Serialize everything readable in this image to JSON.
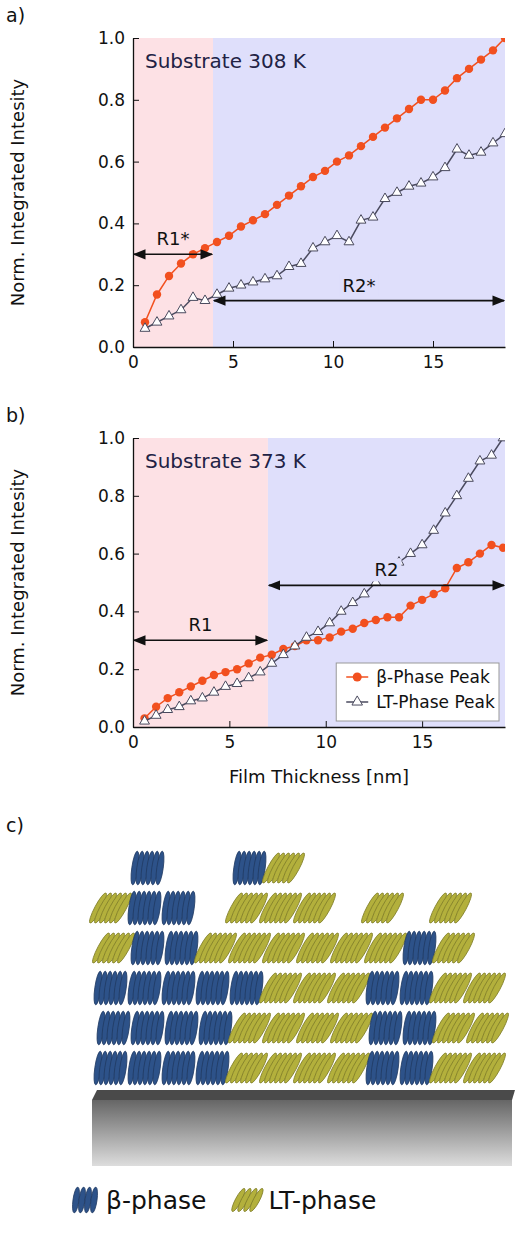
{
  "chart_data": [
    {
      "type": "line",
      "panel_label": "a)",
      "title": "Substrate 308 K",
      "y_label": "Norm. Integrated Intesity",
      "x": [
        0.6,
        1.2,
        1.8,
        2.4,
        3.0,
        3.6,
        4.2,
        4.8,
        5.4,
        6.0,
        6.6,
        7.2,
        7.8,
        8.4,
        9.0,
        9.6,
        10.2,
        10.8,
        11.4,
        12.0,
        12.6,
        13.2,
        13.8,
        14.4,
        15.0,
        15.6,
        16.2,
        16.8,
        17.4,
        18.0,
        18.6
      ],
      "xlim": [
        0,
        18.6
      ],
      "xticks": [
        0,
        5,
        10,
        15
      ],
      "ylim": [
        0,
        1
      ],
      "yticks": [
        {
          "value": 0,
          "label": "0.0"
        },
        {
          "value": 0.2,
          "label": "0.2"
        },
        {
          "value": 0.4,
          "label": "0.4"
        },
        {
          "value": 0.6,
          "label": "0.6"
        },
        {
          "value": 0.8,
          "label": "0.8"
        },
        {
          "value": 1,
          "label": "1.0"
        }
      ],
      "series": [
        {
          "color": "#f2501f",
          "marker": "circle",
          "values": [
            0.08,
            0.17,
            0.23,
            0.27,
            0.3,
            0.32,
            0.34,
            0.36,
            0.39,
            0.41,
            0.43,
            0.46,
            0.49,
            0.52,
            0.55,
            0.57,
            0.6,
            0.62,
            0.65,
            0.68,
            0.71,
            0.74,
            0.77,
            0.8,
            0.8,
            0.83,
            0.87,
            0.9,
            0.93,
            0.96,
            1.0
          ]
        },
        {
          "color": "#4a4a5e",
          "marker": "triangle-open",
          "values": [
            0.06,
            0.08,
            0.1,
            0.12,
            0.16,
            0.15,
            0.17,
            0.19,
            0.2,
            0.21,
            0.22,
            0.23,
            0.26,
            0.27,
            0.32,
            0.34,
            0.36,
            0.34,
            0.41,
            0.42,
            0.48,
            0.5,
            0.52,
            0.53,
            0.55,
            0.58,
            0.64,
            0.62,
            0.63,
            0.66,
            0.69
          ]
        }
      ],
      "regions": [
        {
          "label": "R1*",
          "x": [
            0,
            4
          ],
          "arrow_y": 0.3,
          "color": "#fde1e5"
        },
        {
          "label": "R2*",
          "x": [
            4,
            18.6
          ],
          "arrow_y": 0.15,
          "color": "#dfdffb"
        }
      ]
    },
    {
      "type": "line",
      "panel_label": "b)",
      "title": "Substrate 373 K",
      "x_label": "Film Thickness [nm]",
      "y_label": "Norm. Integrated Intesity",
      "x": [
        0.6,
        1.2,
        1.8,
        2.4,
        3.0,
        3.6,
        4.2,
        4.8,
        5.4,
        6.0,
        6.6,
        7.2,
        7.8,
        8.4,
        9.0,
        9.6,
        10.2,
        10.8,
        11.4,
        12.0,
        12.6,
        13.2,
        13.8,
        14.4,
        15.0,
        15.6,
        16.2,
        16.8,
        17.4,
        18.0,
        18.6,
        19.2
      ],
      "xlim": [
        0,
        19.3
      ],
      "xticks": [
        0,
        5,
        10,
        15
      ],
      "ylim": [
        0,
        1
      ],
      "yticks": [
        {
          "value": 0,
          "label": "0.0"
        },
        {
          "value": 0.2,
          "label": "0.2"
        },
        {
          "value": 0.4,
          "label": "0.4"
        },
        {
          "value": 0.6,
          "label": "0.6"
        },
        {
          "value": 0.8,
          "label": "0.8"
        },
        {
          "value": 1,
          "label": "1.0"
        }
      ],
      "legend": "lower right",
      "series": [
        {
          "name": "β-Phase Peak",
          "color": "#f2501f",
          "marker": "circle",
          "values": [
            0.03,
            0.07,
            0.1,
            0.12,
            0.14,
            0.16,
            0.18,
            0.19,
            0.2,
            0.22,
            0.24,
            0.25,
            0.27,
            0.28,
            0.3,
            0.3,
            0.31,
            0.33,
            0.34,
            0.36,
            0.37,
            0.38,
            0.38,
            0.42,
            0.44,
            0.46,
            0.48,
            0.55,
            0.57,
            0.6,
            0.63,
            0.62
          ]
        },
        {
          "name": "LT-Phase Peak",
          "color": "#4a4a5e",
          "marker": "triangle-open",
          "values": [
            0.02,
            0.04,
            0.06,
            0.07,
            0.09,
            0.1,
            0.12,
            0.14,
            0.15,
            0.17,
            0.19,
            0.22,
            0.25,
            0.28,
            0.31,
            0.33,
            0.36,
            0.4,
            0.43,
            0.46,
            0.5,
            0.53,
            0.57,
            0.6,
            0.63,
            0.68,
            0.74,
            0.8,
            0.86,
            0.92,
            0.94,
            1.0
          ]
        }
      ],
      "regions": [
        {
          "label": "R1",
          "x": [
            0,
            7
          ],
          "arrow_y": 0.3,
          "color": "#fde1e5"
        },
        {
          "label": "R2",
          "x": [
            7,
            19.3
          ],
          "arrow_y": 0.49,
          "color": "#dfdffb"
        }
      ]
    }
  ],
  "diagram": {
    "panel_label": "c)",
    "legend": [
      {
        "name": "β-phase",
        "color": "#2d5289"
      },
      {
        "name": "LT-phase",
        "color": "#b3b03c"
      }
    ]
  }
}
